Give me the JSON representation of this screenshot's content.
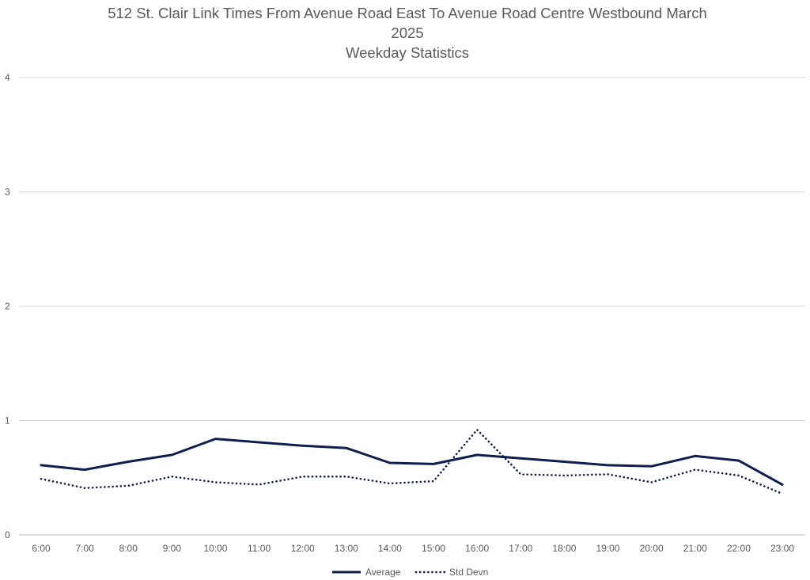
{
  "chart_data": {
    "type": "line",
    "title_lines": [
      "512 St. Clair Link Times From Avenue Road East To Avenue Road Centre Westbound March",
      "2025",
      "Weekday Statistics"
    ],
    "xlabel": "",
    "ylabel": "",
    "ylim": [
      0,
      4
    ],
    "yticks": [
      0,
      1,
      2,
      3,
      4
    ],
    "grid": true,
    "legend_position": "bottom",
    "categories": [
      "6:00",
      "7:00",
      "8:00",
      "9:00",
      "10:00",
      "11:00",
      "12:00",
      "13:00",
      "14:00",
      "15:00",
      "16:00",
      "17:00",
      "18:00",
      "19:00",
      "20:00",
      "21:00",
      "22:00",
      "23:00"
    ],
    "series": [
      {
        "name": "Average",
        "style": "solid",
        "color": "#0d1f4f",
        "values": [
          0.61,
          0.57,
          0.64,
          0.7,
          0.84,
          0.81,
          0.78,
          0.76,
          0.63,
          0.62,
          0.7,
          0.67,
          0.64,
          0.61,
          0.6,
          0.69,
          0.65,
          0.44
        ]
      },
      {
        "name": "Std Devn",
        "style": "dotted",
        "color": "#0d1f4f",
        "values": [
          0.49,
          0.41,
          0.43,
          0.51,
          0.46,
          0.44,
          0.51,
          0.51,
          0.45,
          0.47,
          0.92,
          0.53,
          0.52,
          0.53,
          0.46,
          0.57,
          0.52,
          0.36
        ]
      }
    ]
  }
}
